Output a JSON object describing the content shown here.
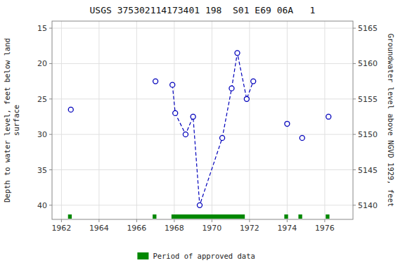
{
  "chart_data": {
    "type": "line",
    "title": "USGS 375302114173401 198  S01 E69 06A   1",
    "ylabel": "Depth to water level, feet below land\nsurface",
    "y2label": "Groundwater level above NGVD 1929, feet",
    "xlim": [
      1961.5,
      1977.5
    ],
    "xticks": [
      1962,
      1964,
      1966,
      1968,
      1970,
      1972,
      1974,
      1976
    ],
    "ylim": [
      42,
      14
    ],
    "yticks": [
      15,
      20,
      25,
      30,
      35,
      40
    ],
    "y2lim": [
      5138,
      5166
    ],
    "y2ticks": [
      5140,
      5145,
      5150,
      5155,
      5160,
      5165
    ],
    "grid": true,
    "legend": "bottom",
    "series": [
      {
        "type": "line",
        "line_style": "dashed",
        "marker": "circle",
        "color": "#0000bb",
        "x": [
          1967.9,
          1968.05,
          1968.6,
          1969.0,
          1969.35,
          1970.55,
          1971.05,
          1971.35,
          1971.85,
          1972.2
        ],
        "values": [
          23.0,
          27.0,
          30.0,
          27.5,
          40.0,
          30.5,
          23.5,
          18.5,
          25.0,
          22.5
        ]
      },
      {
        "type": "scatter",
        "marker": "circle",
        "color": "#0000bb",
        "x": [
          1962.5,
          1967.0,
          1974.0,
          1974.8,
          1976.2
        ],
        "values": [
          26.5,
          22.5,
          28.5,
          30.5,
          27.5
        ]
      },
      {
        "name": "Period of approved data",
        "type": "span",
        "color": "#008800",
        "periods": [
          [
            1962.35,
            1962.55
          ],
          [
            1966.85,
            1967.05
          ],
          [
            1967.85,
            1971.75
          ],
          [
            1973.85,
            1974.05
          ],
          [
            1974.6,
            1974.8
          ],
          [
            1976.05,
            1976.25
          ]
        ]
      }
    ]
  }
}
